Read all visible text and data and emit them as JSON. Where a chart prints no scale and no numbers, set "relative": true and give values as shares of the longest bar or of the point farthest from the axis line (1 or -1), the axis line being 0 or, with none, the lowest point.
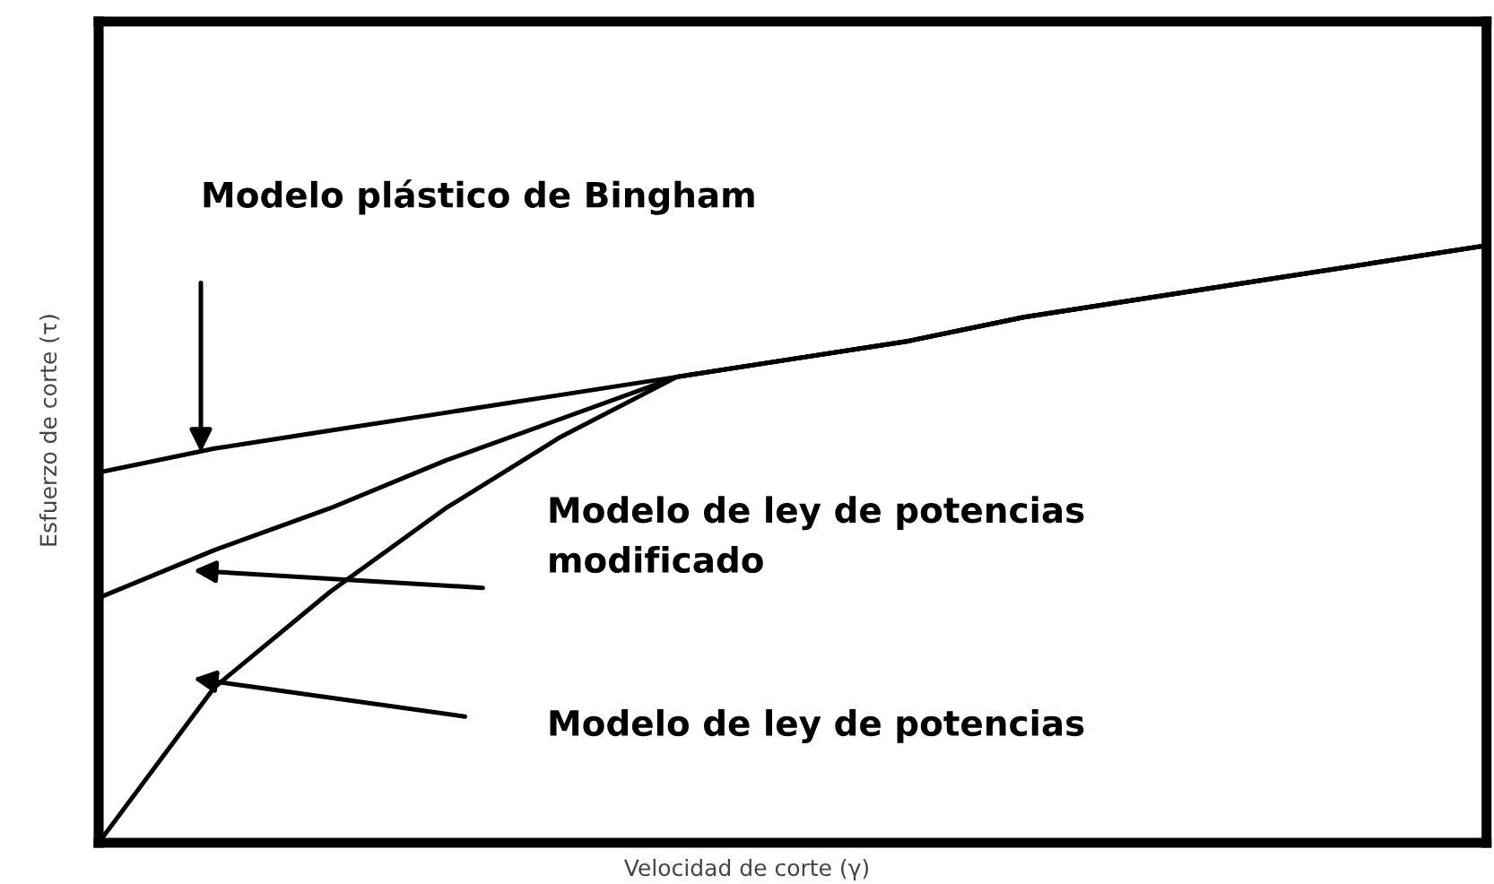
{
  "chart_data": {
    "type": "line",
    "relative": true,
    "xlabel": "Velocidad de corte (γ)",
    "ylabel": "Esfuerzo de corte (τ)",
    "categories": [
      null,
      null,
      null,
      null,
      null,
      null,
      null,
      null,
      null,
      null,
      null,
      null,
      null
    ],
    "series": [
      {
        "color": "#000000",
        "values": [
          0.62,
          0.66,
          0.69,
          0.72,
          0.75,
          0.78,
          0.81,
          0.84,
          0.88,
          0.91,
          0.94,
          0.97,
          1.0
        ]
      },
      {
        "color": "#000000",
        "values": [
          0.41,
          0.49,
          0.56,
          0.64,
          0.71,
          0.78,
          0.81,
          0.84,
          0.88,
          0.91,
          0.94,
          0.97,
          1.0
        ]
      },
      {
        "color": "#000000",
        "values": [
          0.0,
          0.26,
          0.42,
          0.56,
          0.68,
          0.78,
          0.81,
          0.84,
          0.88,
          0.91,
          0.94,
          0.97,
          1.0
        ]
      }
    ],
    "annotations": [
      "Modelo plástico de Bingham",
      "Modelo de ley de potencias\nmodificado",
      "Modelo de ley de potencias"
    ],
    "grid": false,
    "marker": "none",
    "line_style": "solid"
  }
}
